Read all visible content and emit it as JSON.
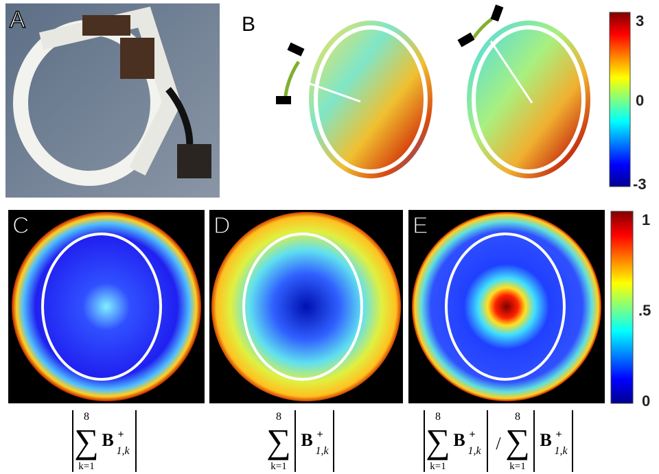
{
  "panels": {
    "a": {
      "label": "A"
    },
    "b": {
      "label": "B"
    },
    "c": {
      "label": "C"
    },
    "d": {
      "label": "D"
    },
    "e": {
      "label": "E"
    }
  },
  "colorbar_b": {
    "ticks": [
      "3",
      "0",
      "-3"
    ]
  },
  "colorbar_cde": {
    "ticks": [
      "1",
      ".5",
      "0"
    ]
  },
  "formulas": {
    "c": {
      "sum": "∑",
      "upper": "8",
      "lower": "k=1",
      "symbol": "B",
      "sup": "+",
      "sub": "1,k"
    },
    "d": {
      "sum": "∑",
      "upper": "8",
      "lower": "k=1",
      "symbol": "B",
      "sup": "+",
      "sub": "1,k"
    },
    "e": {
      "numerator": {
        "sum": "∑",
        "upper": "8",
        "lower": "k=1",
        "symbol": "B",
        "sup": "+",
        "sub": "1,k"
      },
      "divider": "/",
      "denominator": {
        "sum": "∑",
        "upper": "8",
        "lower": "k=1",
        "symbol": "B",
        "sup": "+",
        "sub": "1,k"
      }
    }
  }
}
